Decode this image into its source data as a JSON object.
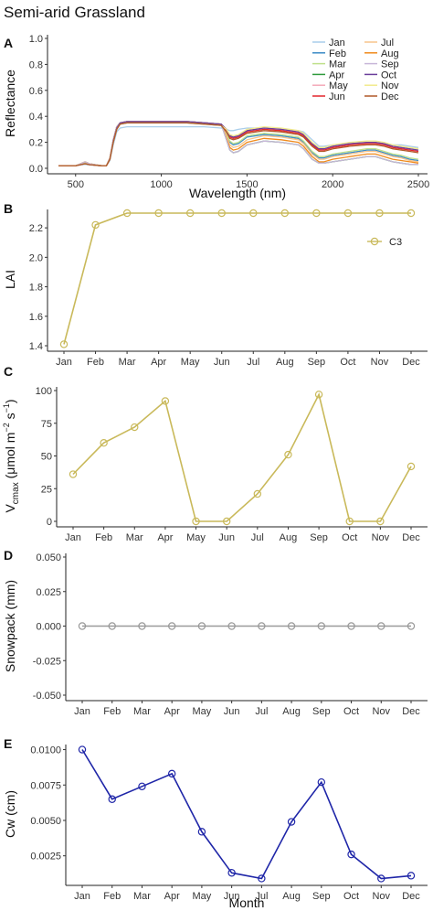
{
  "figure_title": "Semi-arid Grassland",
  "chart_data": [
    {
      "panel": "A",
      "type": "line",
      "xlabel": "Wavelength (nm)",
      "ylabel": "Reflectance",
      "xlim": [
        400,
        2500
      ],
      "ylim": [
        0,
        1.0
      ],
      "xticks": [
        500,
        1000,
        1500,
        2000,
        2500
      ],
      "yticks": [
        0.0,
        0.2,
        0.4,
        0.6,
        0.8,
        1.0
      ],
      "ytick_labels": [
        "0.0",
        "0.2",
        "0.4",
        "0.6",
        "0.8",
        "1.0"
      ],
      "x": [
        400,
        500,
        530,
        555,
        580,
        650,
        680,
        700,
        720,
        740,
        760,
        800,
        900,
        1000,
        1100,
        1150,
        1250,
        1350,
        1380,
        1400,
        1420,
        1450,
        1500,
        1600,
        1700,
        1800,
        1830,
        1880,
        1920,
        1950,
        2000,
        2100,
        2200,
        2250,
        2300,
        2350,
        2400,
        2450,
        2500
      ],
      "series": [
        {
          "name": "Jan",
          "color": "#a9cdea",
          "values": [
            0.02,
            0.02,
            0.025,
            0.03,
            0.025,
            0.02,
            0.02,
            0.06,
            0.18,
            0.28,
            0.31,
            0.32,
            0.32,
            0.32,
            0.32,
            0.32,
            0.32,
            0.31,
            0.3,
            0.29,
            0.29,
            0.3,
            0.31,
            0.31,
            0.3,
            0.29,
            0.28,
            0.22,
            0.17,
            0.17,
            0.18,
            0.19,
            0.2,
            0.2,
            0.19,
            0.18,
            0.18,
            0.17,
            0.16
          ]
        },
        {
          "name": "Feb",
          "color": "#3b8bc6",
          "values": [
            0.02,
            0.02,
            0.028,
            0.035,
            0.028,
            0.02,
            0.02,
            0.07,
            0.2,
            0.3,
            0.34,
            0.35,
            0.35,
            0.35,
            0.35,
            0.35,
            0.34,
            0.33,
            0.26,
            0.2,
            0.18,
            0.19,
            0.24,
            0.26,
            0.25,
            0.23,
            0.2,
            0.12,
            0.08,
            0.08,
            0.1,
            0.12,
            0.14,
            0.14,
            0.12,
            0.1,
            0.09,
            0.07,
            0.06
          ]
        },
        {
          "name": "Mar",
          "color": "#bfe08a",
          "values": [
            0.02,
            0.02,
            0.03,
            0.04,
            0.03,
            0.02,
            0.02,
            0.07,
            0.21,
            0.31,
            0.35,
            0.36,
            0.36,
            0.36,
            0.36,
            0.36,
            0.35,
            0.34,
            0.27,
            0.21,
            0.19,
            0.2,
            0.25,
            0.27,
            0.26,
            0.24,
            0.21,
            0.13,
            0.09,
            0.09,
            0.11,
            0.13,
            0.15,
            0.15,
            0.13,
            0.11,
            0.1,
            0.08,
            0.07
          ]
        },
        {
          "name": "Apr",
          "color": "#2e9a3c",
          "values": [
            0.02,
            0.02,
            0.035,
            0.05,
            0.035,
            0.02,
            0.02,
            0.08,
            0.22,
            0.32,
            0.35,
            0.36,
            0.36,
            0.36,
            0.36,
            0.36,
            0.35,
            0.34,
            0.22,
            0.14,
            0.12,
            0.13,
            0.18,
            0.21,
            0.2,
            0.18,
            0.15,
            0.07,
            0.04,
            0.04,
            0.05,
            0.07,
            0.09,
            0.09,
            0.07,
            0.05,
            0.04,
            0.03,
            0.03
          ]
        },
        {
          "name": "May",
          "color": "#f4a9b8",
          "values": [
            0.02,
            0.02,
            0.028,
            0.035,
            0.028,
            0.02,
            0.02,
            0.07,
            0.21,
            0.31,
            0.35,
            0.36,
            0.36,
            0.36,
            0.36,
            0.36,
            0.35,
            0.34,
            0.3,
            0.25,
            0.24,
            0.25,
            0.29,
            0.31,
            0.3,
            0.28,
            0.26,
            0.19,
            0.15,
            0.15,
            0.17,
            0.19,
            0.2,
            0.2,
            0.19,
            0.17,
            0.16,
            0.15,
            0.14
          ]
        },
        {
          "name": "Jun",
          "color": "#e3262c",
          "values": [
            0.02,
            0.02,
            0.028,
            0.035,
            0.028,
            0.02,
            0.02,
            0.07,
            0.21,
            0.31,
            0.35,
            0.36,
            0.36,
            0.36,
            0.36,
            0.36,
            0.35,
            0.34,
            0.29,
            0.24,
            0.23,
            0.24,
            0.28,
            0.3,
            0.29,
            0.27,
            0.25,
            0.18,
            0.14,
            0.14,
            0.16,
            0.18,
            0.19,
            0.19,
            0.18,
            0.16,
            0.15,
            0.14,
            0.13
          ]
        },
        {
          "name": "Jul",
          "color": "#f7c48a",
          "values": [
            0.02,
            0.02,
            0.035,
            0.05,
            0.035,
            0.02,
            0.02,
            0.08,
            0.22,
            0.32,
            0.35,
            0.36,
            0.36,
            0.36,
            0.36,
            0.36,
            0.35,
            0.34,
            0.25,
            0.18,
            0.16,
            0.17,
            0.22,
            0.25,
            0.24,
            0.22,
            0.19,
            0.11,
            0.07,
            0.07,
            0.09,
            0.11,
            0.13,
            0.13,
            0.11,
            0.09,
            0.08,
            0.06,
            0.05
          ]
        },
        {
          "name": "Aug",
          "color": "#f08a1c",
          "values": [
            0.02,
            0.02,
            0.035,
            0.05,
            0.035,
            0.02,
            0.02,
            0.08,
            0.22,
            0.32,
            0.35,
            0.36,
            0.36,
            0.36,
            0.36,
            0.36,
            0.35,
            0.34,
            0.23,
            0.16,
            0.14,
            0.15,
            0.2,
            0.23,
            0.22,
            0.2,
            0.17,
            0.09,
            0.05,
            0.05,
            0.07,
            0.09,
            0.11,
            0.11,
            0.09,
            0.07,
            0.06,
            0.05,
            0.04
          ]
        },
        {
          "name": "Sep",
          "color": "#c7b6d8",
          "values": [
            0.02,
            0.02,
            0.035,
            0.05,
            0.035,
            0.02,
            0.02,
            0.08,
            0.22,
            0.32,
            0.35,
            0.36,
            0.36,
            0.36,
            0.36,
            0.36,
            0.35,
            0.34,
            0.22,
            0.14,
            0.12,
            0.13,
            0.18,
            0.21,
            0.2,
            0.18,
            0.15,
            0.07,
            0.04,
            0.04,
            0.05,
            0.07,
            0.09,
            0.09,
            0.07,
            0.05,
            0.04,
            0.03,
            0.03
          ]
        },
        {
          "name": "Oct",
          "color": "#6a3d9a",
          "values": [
            0.02,
            0.02,
            0.028,
            0.035,
            0.028,
            0.02,
            0.02,
            0.07,
            0.21,
            0.31,
            0.35,
            0.36,
            0.36,
            0.36,
            0.36,
            0.36,
            0.35,
            0.34,
            0.3,
            0.25,
            0.24,
            0.25,
            0.29,
            0.31,
            0.3,
            0.28,
            0.26,
            0.19,
            0.15,
            0.15,
            0.17,
            0.19,
            0.2,
            0.2,
            0.19,
            0.17,
            0.16,
            0.15,
            0.14
          ]
        },
        {
          "name": "Nov",
          "color": "#f2ea8c",
          "values": [
            0.02,
            0.02,
            0.028,
            0.035,
            0.028,
            0.02,
            0.02,
            0.07,
            0.2,
            0.3,
            0.34,
            0.35,
            0.35,
            0.35,
            0.35,
            0.35,
            0.34,
            0.33,
            0.3,
            0.26,
            0.25,
            0.26,
            0.3,
            0.32,
            0.31,
            0.29,
            0.27,
            0.2,
            0.16,
            0.16,
            0.18,
            0.2,
            0.21,
            0.21,
            0.2,
            0.18,
            0.17,
            0.16,
            0.15
          ]
        },
        {
          "name": "Dec",
          "color": "#b15928",
          "values": [
            0.02,
            0.02,
            0.028,
            0.035,
            0.028,
            0.02,
            0.02,
            0.07,
            0.2,
            0.3,
            0.34,
            0.35,
            0.35,
            0.35,
            0.35,
            0.35,
            0.34,
            0.33,
            0.28,
            0.23,
            0.22,
            0.23,
            0.27,
            0.29,
            0.28,
            0.26,
            0.24,
            0.17,
            0.13,
            0.13,
            0.15,
            0.17,
            0.18,
            0.18,
            0.17,
            0.15,
            0.14,
            0.13,
            0.12
          ]
        }
      ],
      "legend_placement": "top-right"
    },
    {
      "panel": "B",
      "type": "line",
      "categories": [
        "Jan",
        "Feb",
        "Mar",
        "Apr",
        "May",
        "Jun",
        "Jul",
        "Aug",
        "Sep",
        "Oct",
        "Nov",
        "Dec"
      ],
      "ylabel": "LAI",
      "ylim": [
        1.4,
        2.3
      ],
      "yticks": [
        1.4,
        1.6,
        1.8,
        2.0,
        2.2
      ],
      "ytick_labels": [
        "1.4",
        "1.6",
        "1.8",
        "2.0",
        "2.2"
      ],
      "series": [
        {
          "name": "C3",
          "color": "#c9b95a",
          "values": [
            1.41,
            2.22,
            2.3,
            2.3,
            2.3,
            2.3,
            2.3,
            2.3,
            2.3,
            2.3,
            2.3,
            2.3
          ]
        }
      ],
      "legend_placement": "right"
    },
    {
      "panel": "C",
      "type": "line",
      "categories": [
        "Jan",
        "Feb",
        "Mar",
        "Apr",
        "May",
        "Jun",
        "Jul",
        "Aug",
        "Sep",
        "Oct",
        "Nov",
        "Dec"
      ],
      "ylabel_main": "V",
      "ylabel_sub": "cmax",
      "ylabel_rest": " (μmol m",
      "ylabel_sup1": "−2",
      "ylabel_mid": " s",
      "ylabel_sup2": "−1",
      "ylabel_end": ")",
      "ylim": [
        0,
        100
      ],
      "yticks": [
        0,
        25,
        50,
        75,
        100
      ],
      "ytick_labels": [
        "0",
        "25",
        "50",
        "75",
        "100"
      ],
      "series": [
        {
          "color": "#c9b95a",
          "values": [
            36,
            60,
            72,
            92,
            0,
            0,
            21,
            51,
            97,
            0,
            0,
            42
          ]
        }
      ]
    },
    {
      "panel": "D",
      "type": "line",
      "categories": [
        "Jan",
        "Feb",
        "Mar",
        "Apr",
        "May",
        "Jun",
        "Jul",
        "Aug",
        "Sep",
        "Oct",
        "Nov",
        "Dec"
      ],
      "ylabel": "Snowpack (mm)",
      "ylim": [
        -0.05,
        0.05
      ],
      "yticks": [
        -0.05,
        -0.025,
        0,
        0.025,
        0.05
      ],
      "ytick_labels": [
        "-0.050",
        "-0.025",
        "0.000",
        "0.025",
        "0.050"
      ],
      "series": [
        {
          "color": "#999999",
          "values": [
            0,
            0,
            0,
            0,
            0,
            0,
            0,
            0,
            0,
            0,
            0,
            0
          ]
        }
      ]
    },
    {
      "panel": "E",
      "type": "line",
      "categories": [
        "Jan",
        "Feb",
        "Mar",
        "Apr",
        "May",
        "Jun",
        "Jul",
        "Aug",
        "Sep",
        "Oct",
        "Nov",
        "Dec"
      ],
      "xlabel": "Month",
      "ylabel": "Cw (cm)",
      "ylim": [
        0.0008,
        0.0101
      ],
      "yticks": [
        0.0025,
        0.005,
        0.0075,
        0.01
      ],
      "ytick_labels": [
        "0.0025",
        "0.0050",
        "0.0075",
        "0.0100"
      ],
      "series": [
        {
          "color": "#1f26a8",
          "values": [
            0.01,
            0.0065,
            0.0074,
            0.0083,
            0.0042,
            0.0013,
            0.0009,
            0.0049,
            0.0077,
            0.0026,
            0.0009,
            0.0011
          ]
        }
      ]
    }
  ]
}
